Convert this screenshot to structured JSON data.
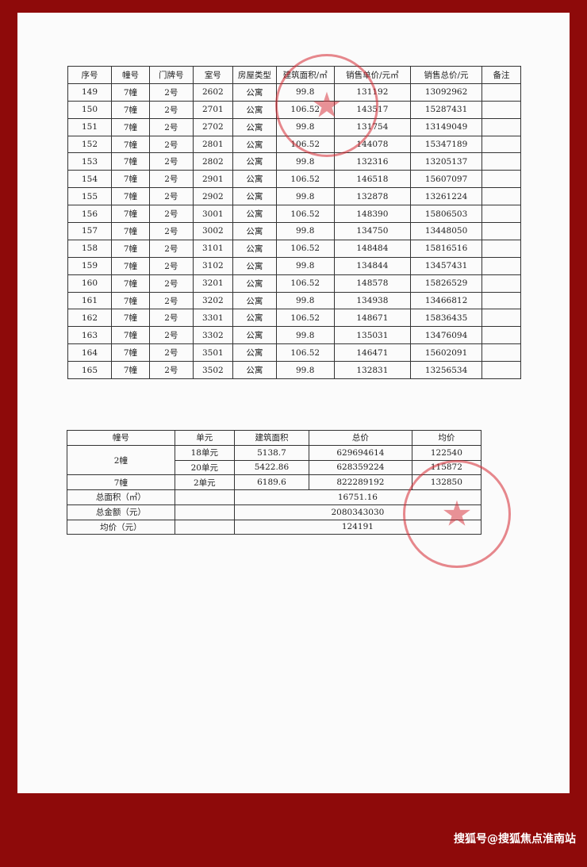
{
  "sales_table": {
    "headers": [
      "序号",
      "幢号",
      "门牌号",
      "室号",
      "房屋类型",
      "建筑面积/㎡",
      "销售单价/元㎡",
      "销售总价/元",
      "备注"
    ],
    "rows": [
      [
        "149",
        "7幢",
        "2号",
        "2602",
        "公寓",
        "99.8",
        "131192",
        "13092962",
        ""
      ],
      [
        "150",
        "7幢",
        "2号",
        "2701",
        "公寓",
        "106.52",
        "143517",
        "15287431",
        ""
      ],
      [
        "151",
        "7幢",
        "2号",
        "2702",
        "公寓",
        "99.8",
        "131754",
        "13149049",
        ""
      ],
      [
        "152",
        "7幢",
        "2号",
        "2801",
        "公寓",
        "106.52",
        "144078",
        "15347189",
        ""
      ],
      [
        "153",
        "7幢",
        "2号",
        "2802",
        "公寓",
        "99.8",
        "132316",
        "13205137",
        ""
      ],
      [
        "154",
        "7幢",
        "2号",
        "2901",
        "公寓",
        "106.52",
        "146518",
        "15607097",
        ""
      ],
      [
        "155",
        "7幢",
        "2号",
        "2902",
        "公寓",
        "99.8",
        "132878",
        "13261224",
        ""
      ],
      [
        "156",
        "7幢",
        "2号",
        "3001",
        "公寓",
        "106.52",
        "148390",
        "15806503",
        ""
      ],
      [
        "157",
        "7幢",
        "2号",
        "3002",
        "公寓",
        "99.8",
        "134750",
        "13448050",
        ""
      ],
      [
        "158",
        "7幢",
        "2号",
        "3101",
        "公寓",
        "106.52",
        "148484",
        "15816516",
        ""
      ],
      [
        "159",
        "7幢",
        "2号",
        "3102",
        "公寓",
        "99.8",
        "134844",
        "13457431",
        ""
      ],
      [
        "160",
        "7幢",
        "2号",
        "3201",
        "公寓",
        "106.52",
        "148578",
        "15826529",
        ""
      ],
      [
        "161",
        "7幢",
        "2号",
        "3202",
        "公寓",
        "99.8",
        "134938",
        "13466812",
        ""
      ],
      [
        "162",
        "7幢",
        "2号",
        "3301",
        "公寓",
        "106.52",
        "148671",
        "15836435",
        ""
      ],
      [
        "163",
        "7幢",
        "2号",
        "3302",
        "公寓",
        "99.8",
        "135031",
        "13476094",
        ""
      ],
      [
        "164",
        "7幢",
        "2号",
        "3501",
        "公寓",
        "106.52",
        "146471",
        "15602091",
        ""
      ],
      [
        "165",
        "7幢",
        "2号",
        "3502",
        "公寓",
        "99.8",
        "132831",
        "13256534",
        ""
      ]
    ]
  },
  "summary_table": {
    "headers": [
      "幢号",
      "单元",
      "建筑面积",
      "总价",
      "均价"
    ],
    "building2": "2幢",
    "building2_rows": [
      {
        "unit": "18单元",
        "area": "5138.7",
        "total": "629694614",
        "avg": "122540"
      },
      {
        "unit": "20单元",
        "area": "5422.86",
        "total": "628359224",
        "avg": "115872"
      }
    ],
    "building7": {
      "building": "7幢",
      "unit": "2单元",
      "area": "6189.6",
      "total": "822289192",
      "avg": "132850"
    },
    "total_area_label": "总面积（㎡）",
    "total_area": "16751.16",
    "total_amount_label": "总金额（元）",
    "total_amount": "2080343030",
    "avg_price_label": "均价（元）",
    "avg_price": "124191"
  },
  "watermark": "搜狐号@搜狐焦点淮南站",
  "colors": {
    "background": "#8e0a0a",
    "stamp": "#d62832"
  }
}
